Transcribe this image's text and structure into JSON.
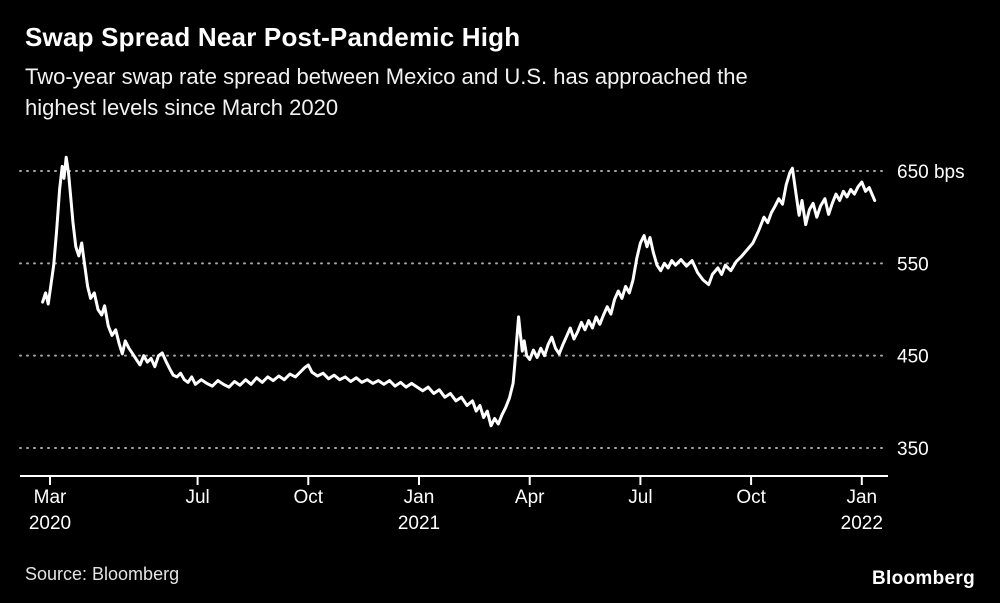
{
  "header": {
    "title": "Swap Spread Near Post-Pandemic High",
    "subtitle": "Two-year swap rate spread between Mexico and U.S. has approached the\nhighest levels since March 2020"
  },
  "footer": {
    "source": "Source: Bloomberg",
    "brand": "Bloomberg"
  },
  "colors": {
    "background": "#000000",
    "line": "#ffffff",
    "gridline": "#a6a6a6",
    "text": "#ffffff"
  },
  "chart_data": {
    "type": "line",
    "title": "Swap Spread Near Post-Pandemic High",
    "xlabel": "",
    "ylabel": "bps",
    "unit": "bps",
    "ylim": [
      330,
      690
    ],
    "grid": "dotted-horizontal",
    "legend": "none",
    "gridlines": [
      {
        "value": 650,
        "label": "650 bps"
      },
      {
        "value": 550,
        "label": "550"
      },
      {
        "value": 450,
        "label": "450"
      },
      {
        "value": 350,
        "label": "350"
      }
    ],
    "x_ticks": [
      {
        "t": 0,
        "label": "Mar",
        "sub": "2020"
      },
      {
        "t": 4,
        "label": "Jul",
        "sub": ""
      },
      {
        "t": 7,
        "label": "Oct",
        "sub": ""
      },
      {
        "t": 10,
        "label": "Jan",
        "sub": "2021"
      },
      {
        "t": 13,
        "label": "Apr",
        "sub": ""
      },
      {
        "t": 16,
        "label": "Jul",
        "sub": ""
      },
      {
        "t": 19,
        "label": "Oct",
        "sub": ""
      },
      {
        "t": 22,
        "label": "Jan",
        "sub": "2022"
      }
    ],
    "series": [
      {
        "name": "Mexico-U.S. two-year swap rate spread (bps)",
        "points": [
          [
            -0.2,
            508
          ],
          [
            -0.12,
            518
          ],
          [
            -0.05,
            506
          ],
          [
            0.02,
            525
          ],
          [
            0.1,
            548
          ],
          [
            0.18,
            585
          ],
          [
            0.26,
            630
          ],
          [
            0.33,
            655
          ],
          [
            0.38,
            642
          ],
          [
            0.44,
            665
          ],
          [
            0.5,
            648
          ],
          [
            0.56,
            622
          ],
          [
            0.62,
            595
          ],
          [
            0.7,
            568
          ],
          [
            0.78,
            558
          ],
          [
            0.86,
            572
          ],
          [
            0.94,
            548
          ],
          [
            1.02,
            525
          ],
          [
            1.1,
            512
          ],
          [
            1.2,
            518
          ],
          [
            1.3,
            500
          ],
          [
            1.4,
            494
          ],
          [
            1.48,
            504
          ],
          [
            1.58,
            482
          ],
          [
            1.68,
            472
          ],
          [
            1.78,
            478
          ],
          [
            1.88,
            462
          ],
          [
            1.96,
            452
          ],
          [
            2.04,
            466
          ],
          [
            2.14,
            458
          ],
          [
            2.24,
            452
          ],
          [
            2.34,
            446
          ],
          [
            2.44,
            440
          ],
          [
            2.54,
            450
          ],
          [
            2.64,
            443
          ],
          [
            2.74,
            447
          ],
          [
            2.84,
            438
          ],
          [
            2.94,
            450
          ],
          [
            3.04,
            453
          ],
          [
            3.14,
            444
          ],
          [
            3.24,
            436
          ],
          [
            3.34,
            429
          ],
          [
            3.44,
            427
          ],
          [
            3.54,
            431
          ],
          [
            3.64,
            424
          ],
          [
            3.74,
            421
          ],
          [
            3.84,
            427
          ],
          [
            3.94,
            419
          ],
          [
            4.1,
            424
          ],
          [
            4.25,
            420
          ],
          [
            4.4,
            417
          ],
          [
            4.55,
            423
          ],
          [
            4.7,
            419
          ],
          [
            4.85,
            416
          ],
          [
            5.0,
            422
          ],
          [
            5.15,
            418
          ],
          [
            5.3,
            424
          ],
          [
            5.45,
            419
          ],
          [
            5.6,
            426
          ],
          [
            5.75,
            421
          ],
          [
            5.9,
            427
          ],
          [
            6.05,
            423
          ],
          [
            6.2,
            428
          ],
          [
            6.35,
            424
          ],
          [
            6.5,
            430
          ],
          [
            6.65,
            427
          ],
          [
            6.8,
            433
          ],
          [
            6.9,
            437
          ],
          [
            7.0,
            440
          ],
          [
            7.1,
            432
          ],
          [
            7.25,
            428
          ],
          [
            7.4,
            431
          ],
          [
            7.55,
            425
          ],
          [
            7.7,
            429
          ],
          [
            7.85,
            424
          ],
          [
            8.0,
            427
          ],
          [
            8.15,
            422
          ],
          [
            8.3,
            426
          ],
          [
            8.45,
            421
          ],
          [
            8.6,
            424
          ],
          [
            8.75,
            420
          ],
          [
            8.9,
            423
          ],
          [
            9.05,
            419
          ],
          [
            9.2,
            423
          ],
          [
            9.35,
            417
          ],
          [
            9.5,
            421
          ],
          [
            9.65,
            416
          ],
          [
            9.8,
            420
          ],
          [
            9.95,
            416
          ],
          [
            10.1,
            412
          ],
          [
            10.25,
            416
          ],
          [
            10.4,
            409
          ],
          [
            10.55,
            413
          ],
          [
            10.7,
            405
          ],
          [
            10.85,
            409
          ],
          [
            11.0,
            401
          ],
          [
            11.15,
            405
          ],
          [
            11.3,
            396
          ],
          [
            11.45,
            401
          ],
          [
            11.55,
            390
          ],
          [
            11.65,
            396
          ],
          [
            11.75,
            383
          ],
          [
            11.85,
            390
          ],
          [
            11.95,
            374
          ],
          [
            12.05,
            382
          ],
          [
            12.15,
            376
          ],
          [
            12.25,
            386
          ],
          [
            12.35,
            394
          ],
          [
            12.45,
            404
          ],
          [
            12.55,
            420
          ],
          [
            12.6,
            442
          ],
          [
            12.65,
            468
          ],
          [
            12.7,
            492
          ],
          [
            12.75,
            472
          ],
          [
            12.8,
            455
          ],
          [
            12.85,
            466
          ],
          [
            12.92,
            450
          ],
          [
            13.0,
            446
          ],
          [
            13.1,
            456
          ],
          [
            13.2,
            448
          ],
          [
            13.3,
            458
          ],
          [
            13.4,
            450
          ],
          [
            13.5,
            462
          ],
          [
            13.6,
            470
          ],
          [
            13.7,
            458
          ],
          [
            13.8,
            452
          ],
          [
            13.9,
            462
          ],
          [
            14.0,
            471
          ],
          [
            14.1,
            480
          ],
          [
            14.2,
            468
          ],
          [
            14.3,
            476
          ],
          [
            14.4,
            486
          ],
          [
            14.5,
            478
          ],
          [
            14.6,
            488
          ],
          [
            14.7,
            480
          ],
          [
            14.8,
            492
          ],
          [
            14.9,
            484
          ],
          [
            15.0,
            494
          ],
          [
            15.1,
            503
          ],
          [
            15.2,
            495
          ],
          [
            15.3,
            511
          ],
          [
            15.4,
            520
          ],
          [
            15.5,
            512
          ],
          [
            15.6,
            525
          ],
          [
            15.7,
            518
          ],
          [
            15.8,
            532
          ],
          [
            15.9,
            555
          ],
          [
            16.0,
            572
          ],
          [
            16.1,
            580
          ],
          [
            16.18,
            568
          ],
          [
            16.26,
            578
          ],
          [
            16.35,
            562
          ],
          [
            16.45,
            548
          ],
          [
            16.55,
            542
          ],
          [
            16.65,
            550
          ],
          [
            16.75,
            545
          ],
          [
            16.85,
            553
          ],
          [
            16.95,
            548
          ],
          [
            17.1,
            554
          ],
          [
            17.25,
            547
          ],
          [
            17.4,
            553
          ],
          [
            17.55,
            540
          ],
          [
            17.7,
            532
          ],
          [
            17.85,
            527
          ],
          [
            17.95,
            538
          ],
          [
            18.1,
            545
          ],
          [
            18.2,
            538
          ],
          [
            18.3,
            548
          ],
          [
            18.45,
            542
          ],
          [
            18.6,
            552
          ],
          [
            18.75,
            558
          ],
          [
            18.9,
            565
          ],
          [
            19.05,
            572
          ],
          [
            19.2,
            585
          ],
          [
            19.35,
            600
          ],
          [
            19.45,
            594
          ],
          [
            19.55,
            605
          ],
          [
            19.65,
            612
          ],
          [
            19.75,
            620
          ],
          [
            19.85,
            614
          ],
          [
            19.95,
            635
          ],
          [
            20.05,
            648
          ],
          [
            20.12,
            653
          ],
          [
            20.2,
            630
          ],
          [
            20.3,
            602
          ],
          [
            20.38,
            618
          ],
          [
            20.48,
            592
          ],
          [
            20.58,
            608
          ],
          [
            20.68,
            615
          ],
          [
            20.78,
            600
          ],
          [
            20.88,
            612
          ],
          [
            21.0,
            620
          ],
          [
            21.1,
            603
          ],
          [
            21.2,
            615
          ],
          [
            21.3,
            625
          ],
          [
            21.4,
            618
          ],
          [
            21.5,
            628
          ],
          [
            21.6,
            622
          ],
          [
            21.7,
            630
          ],
          [
            21.8,
            625
          ],
          [
            21.9,
            633
          ],
          [
            22.0,
            638
          ],
          [
            22.1,
            628
          ],
          [
            22.2,
            632
          ],
          [
            22.35,
            618
          ]
        ]
      }
    ]
  }
}
